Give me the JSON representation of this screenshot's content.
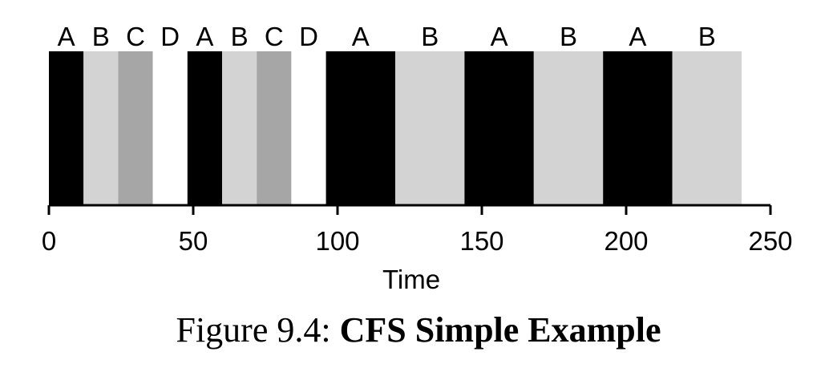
{
  "chart_data": {
    "type": "bar",
    "xlabel": "Time",
    "xlim": [
      0,
      250
    ],
    "xticks": [
      0,
      50,
      100,
      150,
      200,
      250
    ],
    "xtick_labels": [
      "0",
      "50",
      "100",
      "150",
      "200",
      "250"
    ],
    "grid": false,
    "colors": {
      "A": "#000000",
      "B": "#d3d3d3",
      "C": "#a6a6a6",
      "D": "#ffffff"
    },
    "segments": [
      {
        "label": "A",
        "start": 0,
        "end": 12
      },
      {
        "label": "B",
        "start": 12,
        "end": 24
      },
      {
        "label": "C",
        "start": 24,
        "end": 36
      },
      {
        "label": "D",
        "start": 36,
        "end": 48
      },
      {
        "label": "A",
        "start": 48,
        "end": 60
      },
      {
        "label": "B",
        "start": 60,
        "end": 72
      },
      {
        "label": "C",
        "start": 72,
        "end": 84
      },
      {
        "label": "D",
        "start": 84,
        "end": 96
      },
      {
        "label": "A",
        "start": 96,
        "end": 120
      },
      {
        "label": "B",
        "start": 120,
        "end": 144
      },
      {
        "label": "A",
        "start": 144,
        "end": 168
      },
      {
        "label": "B",
        "start": 168,
        "end": 192
      },
      {
        "label": "A",
        "start": 192,
        "end": 216
      },
      {
        "label": "B",
        "start": 216,
        "end": 240
      }
    ]
  },
  "caption": {
    "prefix": "Figure 9.4:",
    "title": "CFS Simple Example"
  }
}
